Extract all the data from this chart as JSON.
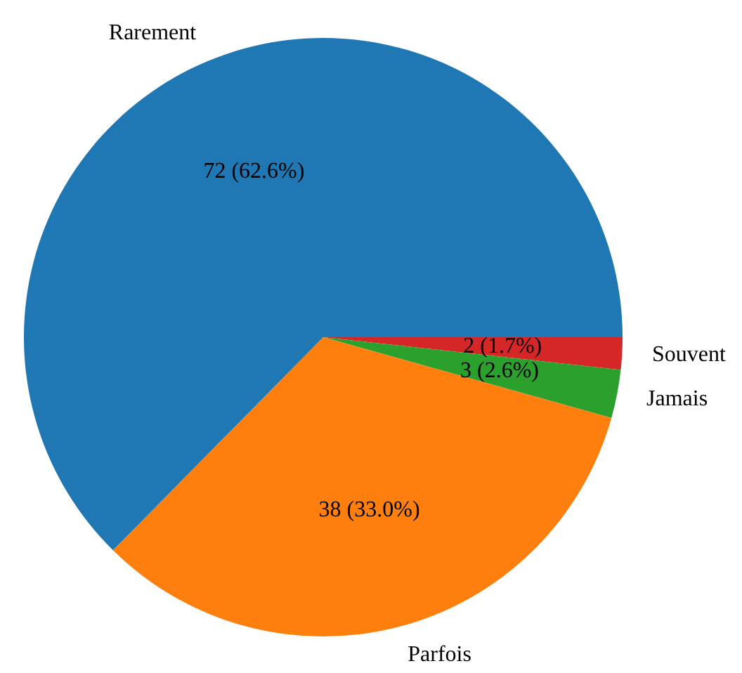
{
  "chart_data": {
    "type": "pie",
    "categories": [
      "Rarement",
      "Parfois",
      "Jamais",
      "Souvent"
    ],
    "values": [
      72,
      38,
      3,
      2
    ],
    "colors": [
      "#1f77b4",
      "#ff7f0e",
      "#2ca02c",
      "#d62728"
    ],
    "value_labels": [
      "72 (62.6%)",
      "38 (33.0%)",
      "3 (2.6%)",
      "2 (1.7%)"
    ],
    "legend": false
  }
}
